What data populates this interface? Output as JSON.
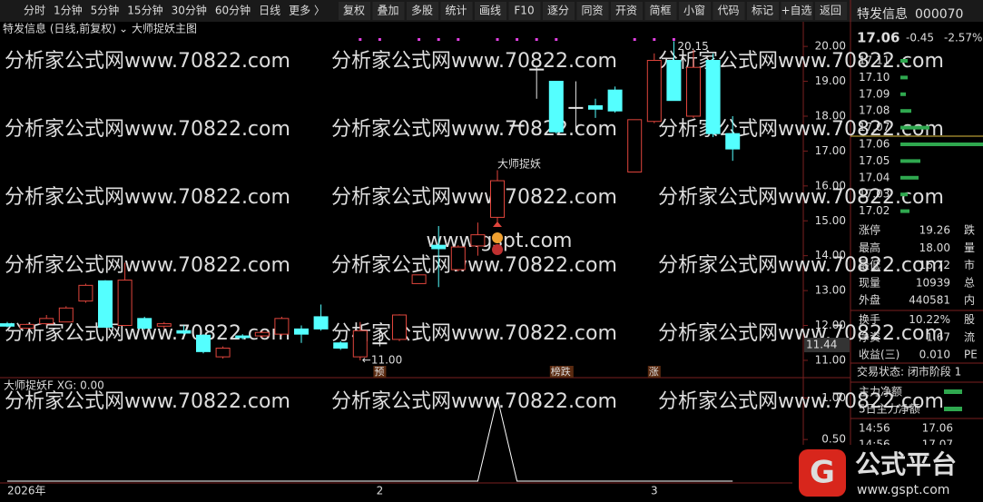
{
  "toolbar": {
    "tabs": [
      "分时",
      "1分钟",
      "5分钟",
      "15分钟",
      "30分钟",
      "60分钟",
      "日线",
      "更多 〉"
    ],
    "active_tab_index": 6,
    "buttons": [
      "复权",
      "叠加",
      "多股",
      "统计",
      "画线",
      "F10",
      "逐分",
      "同资",
      "开资",
      "简框",
      "小窗",
      "代码",
      "标记",
      "+自选",
      "返回"
    ]
  },
  "chart_header": {
    "title": "特发信息 (日线,前复权)",
    "indicator": "大师捉妖主图"
  },
  "watermark": "分析家公式网www.70822.com",
  "center_watermark": "www.gspt.com",
  "chart_data": {
    "type": "candlestick",
    "ylim": [
      10.53,
      20.29
    ],
    "yticks": [
      {
        "value": 20,
        "label": "20.00"
      },
      {
        "value": 19,
        "label": "19.00"
      },
      {
        "value": 18,
        "label": "18.00"
      },
      {
        "value": 17,
        "label": "17.00"
      },
      {
        "value": 16,
        "label": "16.00"
      },
      {
        "value": 15,
        "label": "15.00"
      },
      {
        "value": 14,
        "label": "14.00"
      },
      {
        "value": 13,
        "label": "13.00"
      },
      {
        "value": 12,
        "label": "12.00"
      },
      {
        "value": 11,
        "label": "11.00"
      }
    ],
    "price_tag": 11.44,
    "up_color": "#e0453c",
    "down_color": "#54ffff",
    "flat_color": "#e6e6e6",
    "categories": [
      "2026年",
      null,
      null,
      null,
      null,
      null,
      null,
      null,
      null,
      null,
      null,
      null,
      null,
      null,
      null,
      null,
      null,
      null,
      null,
      "2",
      null,
      null,
      null,
      null,
      null,
      null,
      null,
      null,
      null,
      null,
      null,
      null,
      null,
      "3",
      null,
      null,
      null,
      null
    ],
    "markers": [
      null,
      null,
      null,
      null,
      null,
      null,
      null,
      null,
      null,
      null,
      null,
      null,
      null,
      null,
      null,
      null,
      null,
      null,
      null,
      "预",
      null,
      null,
      null,
      null,
      null,
      null,
      null,
      null,
      "榜跌",
      null,
      null,
      null,
      null,
      "涨",
      null,
      null,
      null,
      null
    ],
    "dot_candles": [
      18,
      19,
      21,
      22,
      23,
      25,
      26,
      27,
      28,
      32,
      33,
      34
    ],
    "signal": {
      "candle": 25,
      "label": "大师捉妖"
    },
    "low_annotation": {
      "candle": 18,
      "label": "←11.00"
    },
    "high_annotation": {
      "candle": 34,
      "label": "20.15"
    },
    "candles": [
      {
        "open": 12.05,
        "high": 12.1,
        "low": 11.95,
        "close": 11.98
      },
      {
        "open": 11.92,
        "high": 12.05,
        "low": 11.9,
        "close": 12.03
      },
      {
        "open": 12.05,
        "high": 12.3,
        "low": 12.0,
        "close": 12.2
      },
      {
        "open": 12.1,
        "high": 12.55,
        "low": 12.1,
        "close": 12.5
      },
      {
        "open": 12.7,
        "high": 13.2,
        "low": 12.65,
        "close": 13.15
      },
      {
        "open": 13.28,
        "high": 13.3,
        "low": 11.93,
        "close": 11.95
      },
      {
        "open": 12.0,
        "high": 13.8,
        "low": 11.98,
        "close": 13.3
      },
      {
        "open": 12.2,
        "high": 12.25,
        "low": 11.88,
        "close": 11.92
      },
      {
        "open": 11.98,
        "high": 12.1,
        "low": 11.9,
        "close": 12.05
      },
      {
        "open": 11.85,
        "high": 12.0,
        "low": 11.75,
        "close": 11.78
      },
      {
        "open": 11.72,
        "high": 11.75,
        "low": 11.2,
        "close": 11.25
      },
      {
        "open": 11.1,
        "high": 11.4,
        "low": 11.05,
        "close": 11.35
      },
      {
        "open": 11.7,
        "high": 11.75,
        "low": 11.6,
        "close": 11.65
      },
      {
        "open": 11.7,
        "high": 11.85,
        "low": 11.65,
        "close": 11.8
      },
      {
        "open": 11.75,
        "high": 12.25,
        "low": 11.7,
        "close": 12.2
      },
      {
        "open": 11.9,
        "high": 12.0,
        "low": 11.5,
        "close": 11.75
      },
      {
        "open": 12.25,
        "high": 12.6,
        "low": 11.85,
        "close": 11.9
      },
      {
        "open": 11.5,
        "high": 11.55,
        "low": 11.3,
        "close": 11.35
      },
      {
        "open": 11.1,
        "high": 12.1,
        "low": 11.0,
        "close": 11.85
      },
      {
        "open": 11.5,
        "high": 11.85,
        "low": 11.4,
        "close": 11.5
      },
      {
        "open": 11.6,
        "high": 12.32,
        "low": 11.55,
        "close": 12.3
      },
      {
        "open": 13.2,
        "high": 13.45,
        "low": 13.2,
        "close": 13.45
      },
      {
        "open": 14.3,
        "high": 14.85,
        "low": 13.1,
        "close": 14.2
      },
      {
        "open": 13.6,
        "high": 14.3,
        "low": 13.55,
        "close": 14.25
      },
      {
        "open": 14.28,
        "high": 14.95,
        "low": 14.0,
        "close": 14.6
      },
      {
        "open": 15.1,
        "high": 16.45,
        "low": 14.9,
        "close": 16.15
      },
      {
        "open": 17.74,
        "high": 17.74,
        "low": 17.74,
        "close": 17.74
      },
      {
        "open": 19.35,
        "high": 19.4,
        "low": 18.5,
        "close": 19.35
      },
      {
        "open": 19.0,
        "high": 19.0,
        "low": 17.5,
        "close": 17.55
      },
      {
        "open": 18.25,
        "high": 19.0,
        "low": 17.55,
        "close": 18.25
      },
      {
        "open": 18.3,
        "high": 18.5,
        "low": 17.95,
        "close": 18.2
      },
      {
        "open": 18.75,
        "high": 18.85,
        "low": 18.1,
        "close": 18.15
      },
      {
        "open": 16.4,
        "high": 17.9,
        "low": 16.4,
        "close": 17.9
      },
      {
        "open": 17.85,
        "high": 19.8,
        "low": 17.8,
        "close": 19.6
      },
      {
        "open": 19.6,
        "high": 20.15,
        "low": 18.45,
        "close": 18.45
      },
      {
        "open": 18.0,
        "high": 19.9,
        "low": 17.95,
        "close": 19.4
      },
      {
        "open": 19.6,
        "high": 19.8,
        "low": 17.4,
        "close": 17.5
      },
      {
        "open": 17.5,
        "high": 18.0,
        "low": 16.72,
        "close": 17.06
      }
    ]
  },
  "indicator": {
    "title": "大师捉妖F XG: 0.00",
    "ylim": [
      0,
      1.2
    ],
    "yticks": [
      {
        "value": 1,
        "label": "1.00"
      },
      {
        "value": 0.5,
        "label": "0.50"
      }
    ],
    "color": "#ffffff",
    "values": [
      0,
      0,
      0,
      0,
      0,
      0,
      0,
      0,
      0,
      0,
      0,
      0,
      0,
      0,
      0,
      0,
      0,
      0,
      0,
      0,
      0,
      0,
      0,
      0,
      0,
      1,
      0,
      0,
      0,
      0,
      0,
      0,
      0,
      0,
      0,
      0,
      0,
      0
    ]
  },
  "quote": {
    "name": "特发信息",
    "code": "000070",
    "price": "17.06",
    "change": "-0.45",
    "change_pct": "-2.57%",
    "book": [
      {
        "price": "17.11",
        "depth": 8
      },
      {
        "price": "17.10",
        "depth": 8
      },
      {
        "price": "17.09",
        "depth": 6
      },
      {
        "price": "17.08",
        "depth": 12
      },
      {
        "price": "17.07",
        "depth": 32
      },
      {
        "price": "17.06",
        "depth": 140
      },
      {
        "price": "17.05",
        "depth": 22
      },
      {
        "price": "17.04",
        "depth": 20
      },
      {
        "price": "17.03",
        "depth": 8
      },
      {
        "price": "17.02",
        "depth": 10
      }
    ],
    "stats": [
      [
        "涨停",
        "19.26",
        "跌"
      ],
      [
        "最高",
        "18.00",
        "量"
      ],
      [
        "最低",
        "16.72",
        "市"
      ],
      [
        "现量",
        "10939",
        "总"
      ],
      [
        "外盘",
        "440581",
        "内"
      ],
      [
        "换手",
        "10.22%",
        "股"
      ],
      [
        "净资",
        "1.67",
        "流"
      ],
      [
        "收益(三)",
        "0.010",
        "PE"
      ]
    ],
    "status": "交易状态: 闭市阶段 1",
    "flow": [
      "主力净额",
      "5日主力净额"
    ],
    "ticks": [
      [
        "14:56",
        "17.06"
      ],
      [
        "14:56",
        "17.07"
      ]
    ]
  },
  "logo": {
    "name": "公式平台",
    "url": "www.gspt.com"
  }
}
